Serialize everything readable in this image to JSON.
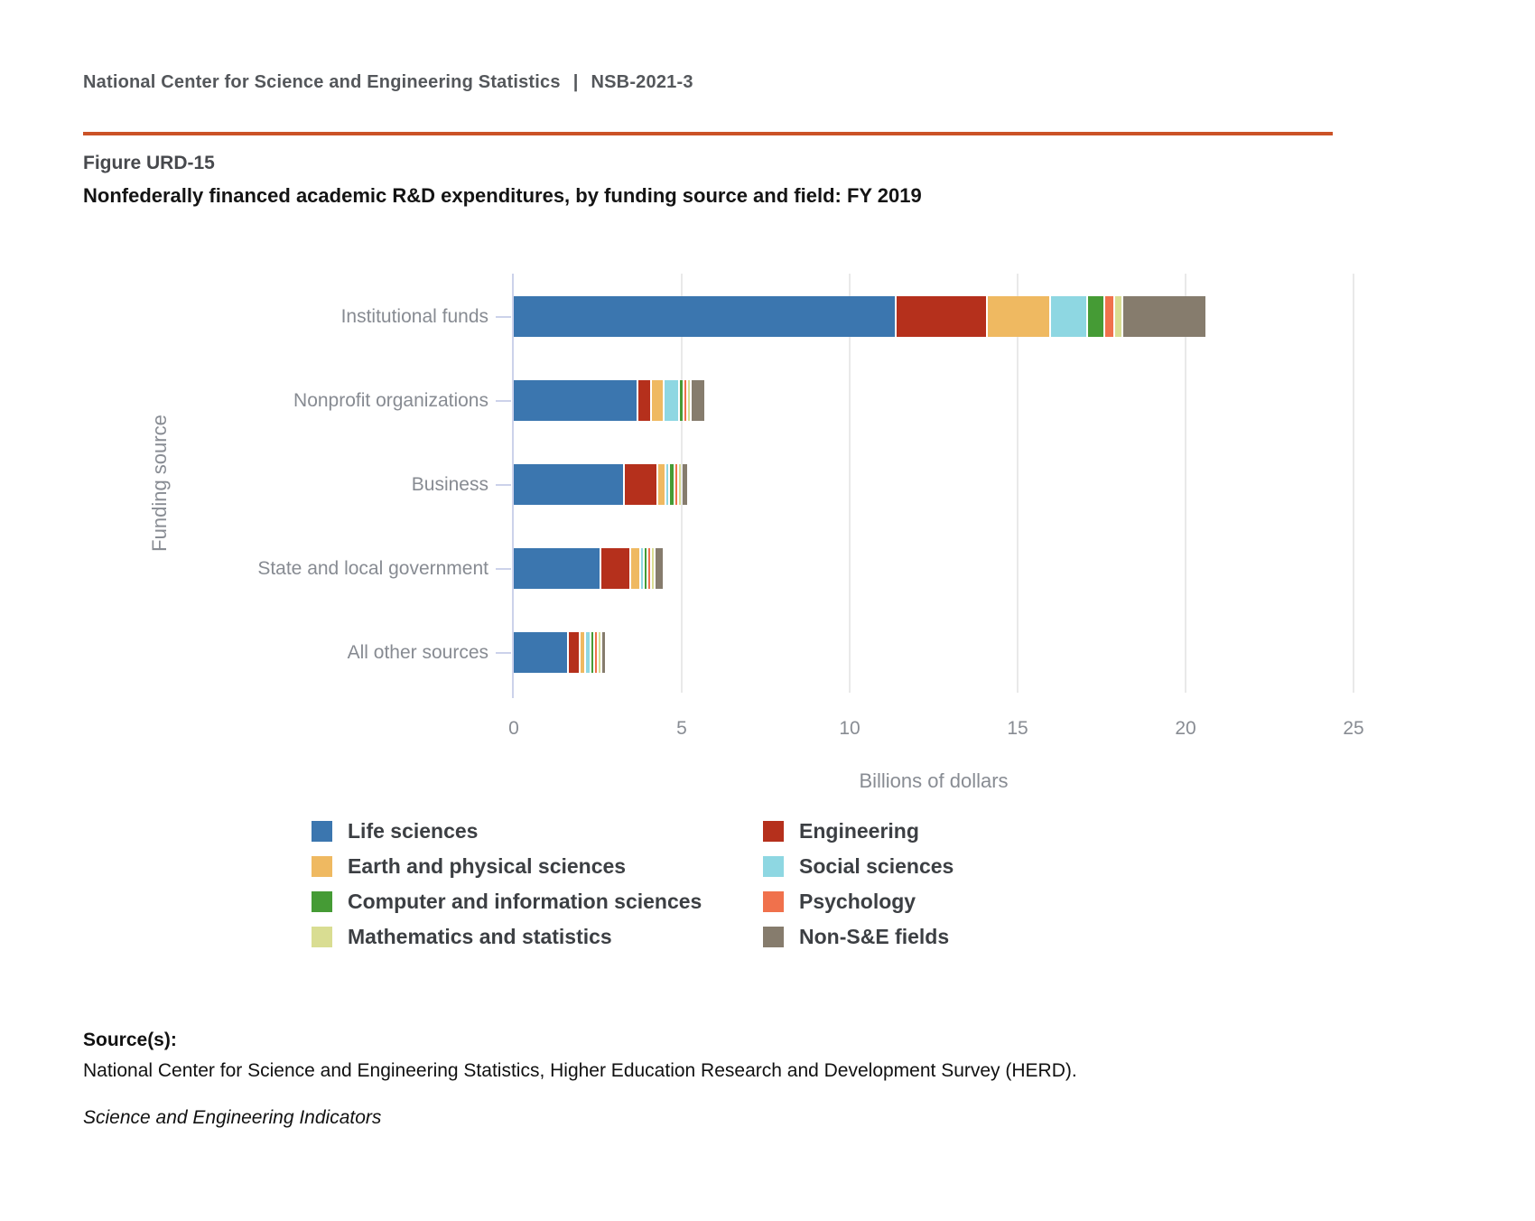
{
  "header": {
    "org": "National Center for Science and Engineering Statistics",
    "divider": "|",
    "report_id": "NSB-2021-3",
    "rule_color": "#cb5227"
  },
  "figure": {
    "label": "Figure URD-15",
    "title": "Nonfederally financed academic R&D expenditures, by funding source and field: FY 2019"
  },
  "chart_data": {
    "type": "bar",
    "orientation": "horizontal",
    "stacked": true,
    "title": "Nonfederally financed academic R&D expenditures, by funding source and field: FY 2019",
    "xlabel": "Billions of dollars",
    "ylabel": "Funding source",
    "xlim": [
      0,
      25
    ],
    "xticks": [
      0,
      5,
      10,
      15,
      20,
      25
    ],
    "grid": true,
    "legend_position": "bottom",
    "categories": [
      "Institutional funds",
      "Nonprofit organizations",
      "Business",
      "State and local government",
      "All other sources"
    ],
    "series": [
      {
        "name": "Life sciences",
        "color": "#3b76af",
        "values": [
          11.4,
          3.7,
          3.3,
          2.6,
          1.65
        ]
      },
      {
        "name": "Engineering",
        "color": "#b5301c",
        "values": [
          2.7,
          0.4,
          1.0,
          0.9,
          0.35
        ]
      },
      {
        "name": "Earth and physical sciences",
        "color": "#efb961",
        "values": [
          1.9,
          0.4,
          0.25,
          0.3,
          0.15
        ]
      },
      {
        "name": "Social sciences",
        "color": "#8ed7e2",
        "values": [
          1.1,
          0.45,
          0.05,
          0.08,
          0.15
        ]
      },
      {
        "name": "Computer and information sciences",
        "color": "#459b35",
        "values": [
          0.5,
          0.12,
          0.15,
          0.05,
          0.05
        ]
      },
      {
        "name": "Psychology",
        "color": "#f0714c",
        "values": [
          0.3,
          0.05,
          0.03,
          0.04,
          0.03
        ]
      },
      {
        "name": "Mathematics and statistics",
        "color": "#d9dd92",
        "values": [
          0.25,
          0.08,
          0.05,
          0.08,
          0.04
        ]
      },
      {
        "name": "Non-S&E fields",
        "color": "#867c6d",
        "values": [
          2.5,
          0.45,
          0.2,
          0.27,
          0.14
        ]
      }
    ],
    "totals": [
      20.65,
      5.65,
      5.03,
      4.32,
      2.56
    ]
  },
  "legend": {
    "column_order": [
      [
        0,
        2,
        4,
        6
      ],
      [
        1,
        3,
        5,
        7
      ]
    ]
  },
  "footer": {
    "source_label": "Source(s):",
    "source_text": "National Center for Science and Engineering Statistics, Higher Education Research and Development Survey (HERD).",
    "publication": "Science and Engineering Indicators"
  }
}
